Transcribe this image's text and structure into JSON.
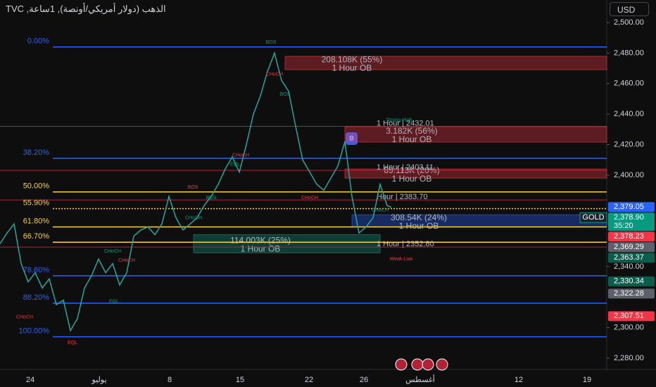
{
  "header": {
    "symbol_title": "الذهب (دولار أمريكي/أونصة), 1ساعة, TVC",
    "currency_button": "USD"
  },
  "chart_data": {
    "type": "line",
    "color": "#26a69a",
    "x": [
      0,
      10,
      20,
      30,
      40,
      50,
      60,
      70,
      80,
      90,
      100,
      110,
      120,
      130,
      140,
      150,
      160,
      170,
      180,
      190,
      200,
      210,
      220,
      230,
      240,
      250,
      260,
      270,
      280,
      290,
      300,
      310,
      320,
      330,
      340,
      350,
      360,
      370,
      380,
      390,
      400,
      410,
      420,
      430,
      440,
      450,
      460,
      470,
      480,
      490,
      500,
      510,
      520,
      530,
      540,
      550,
      556
    ],
    "values": [
      2355,
      2362,
      2368,
      2342,
      2330,
      2336,
      2326,
      2332,
      2315,
      2318,
      2298,
      2306,
      2326,
      2334,
      2345,
      2336,
      2342,
      2328,
      2336,
      2360,
      2364,
      2366,
      2361,
      2368,
      2386,
      2372,
      2364,
      2368,
      2372,
      2380,
      2386,
      2394,
      2404,
      2412,
      2402,
      2420,
      2440,
      2452,
      2468,
      2480,
      2462,
      2455,
      2432,
      2410,
      2402,
      2394,
      2390,
      2398,
      2406,
      2422,
      2386,
      2362,
      2366,
      2372,
      2394,
      2380,
      2378.9
    ],
    "xlim": [
      0,
      862
    ],
    "ylim": [
      2272.6,
      2514.8
    ],
    "yticks": [
      {
        "value": 2500,
        "label": "2,500.00"
      },
      {
        "value": 2480,
        "label": "2,480.00"
      },
      {
        "value": 2460,
        "label": "2,460.00"
      },
      {
        "value": 2440,
        "label": "2,440.00"
      },
      {
        "value": 2420,
        "label": "2,420.00"
      },
      {
        "value": 2400,
        "label": "2,400.00"
      },
      {
        "value": 2340,
        "label": "2,340.00"
      },
      {
        "value": 2300,
        "label": "2,300.00"
      },
      {
        "value": 2280,
        "label": "2,280.00"
      }
    ],
    "categories": [
      "24",
      "يوليو",
      "8",
      "15",
      "22",
      "26",
      "أغسطس",
      "12",
      "19"
    ],
    "fib_levels": [
      {
        "label": "0.00%",
        "value": 2484,
        "color": "#2962ff"
      },
      {
        "label": "38.20%",
        "value": 2411,
        "color": "#2962ff"
      },
      {
        "label": "50.00%",
        "value": 2389,
        "color": "#f7d23a"
      },
      {
        "label": "55.90%",
        "value": 2378,
        "color": "#f7d23a"
      },
      {
        "label": "61.80%",
        "value": 2366,
        "color": "#f7d23a"
      },
      {
        "label": "66.70%",
        "value": 2356,
        "color": "#f7d23a"
      },
      {
        "label": "78.60%",
        "value": 2334,
        "color": "#2962ff"
      },
      {
        "label": "88.20%",
        "value": 2316,
        "color": "#2962ff"
      },
      {
        "label": "100.00%",
        "value": 2294,
        "color": "#2962ff"
      }
    ],
    "levels": [
      {
        "label": "1 Hour | 2432.01",
        "value": 2432.01
      },
      {
        "label": "1 Hour | 2403.11",
        "value": 2403.11
      },
      {
        "label": "Hour | 2383.70",
        "value": 2383.7
      },
      {
        "label": "1 Hour | 2352.80",
        "value": 2352.8
      }
    ],
    "order_blocks": [
      {
        "label": "208.108K (55%)",
        "sublabel": "1 Hour OB",
        "x": [
          405,
          862
        ],
        "range": [
          2469.1,
          2477.9
        ],
        "color": "#f23645"
      },
      {
        "label": "3.182K (56%)",
        "sublabel": "1 Hour OB",
        "x": [
          490,
          862
        ],
        "range": [
          2421.6,
          2431.7
        ],
        "color": "#f23645"
      },
      {
        "label": "89.113K (20%)",
        "sublabel": "1 Hour OB",
        "x": [
          490,
          862
        ],
        "range": [
          2398,
          2404
        ],
        "color": "#f23645"
      },
      {
        "label": "308.54K (24%)",
        "sublabel": "1 Hour OB",
        "x": [
          500,
          862
        ],
        "range": [
          2366,
          2374
        ],
        "color": "#2962ff"
      },
      {
        "label": "114.003K (25%)",
        "sublabel": "1 Hour OB",
        "x": [
          275,
          540
        ],
        "range": [
          2349,
          2361
        ],
        "color": "#089981"
      }
    ],
    "structure_labels": [
      {
        "text": "BOS",
        "x": 385,
        "value": 2487
      },
      {
        "text": "BOS",
        "x": 274,
        "value": 2392
      },
      {
        "text": "BOS",
        "x": 300,
        "value": 2385
      },
      {
        "text": "CHoCH",
        "x": 390,
        "value": 2466
      },
      {
        "text": "BOS",
        "x": 405,
        "value": 2453
      },
      {
        "text": "CHoCH",
        "x": 342,
        "value": 2413
      },
      {
        "text": "EQL",
        "x": 334,
        "value": 2407
      },
      {
        "text": "CHoCH",
        "x": 440,
        "value": 2385
      },
      {
        "text": "CHoCH",
        "x": 160,
        "value": 2350
      },
      {
        "text": "CHoCH",
        "x": 180,
        "value": 2344
      },
      {
        "text": "CHoCH",
        "x": 275,
        "value": 2372
      },
      {
        "text": "CHoCH",
        "x": 35,
        "value": 2307
      },
      {
        "text": "EQL",
        "x": 162,
        "value": 2317
      },
      {
        "text": "EQL",
        "x": 103,
        "value": 2290
      },
      {
        "text": "Strong High",
        "x": 567,
        "value": 2436
      },
      {
        "text": "Weak Low",
        "x": 570,
        "value": 2345
      },
      {
        "text": "CHoCH",
        "x": 540,
        "value": 2377
      }
    ],
    "price_tags": [
      {
        "label": "2,379.05",
        "value": 2379.05,
        "color": "#2962ff"
      },
      {
        "label": "2,378.90",
        "value": 2378.9,
        "color": "#089981",
        "sublabel": "35:20",
        "symbol": "GOLD"
      },
      {
        "label": "2,378.23",
        "value": 2378.23,
        "color": "#f23645"
      },
      {
        "label": "2,369.29",
        "value": 2369.29,
        "color": "#5d606b"
      },
      {
        "label": "2,363.37",
        "value": 2363.37,
        "color": "#0b5e4b"
      },
      {
        "label": "2,330.34",
        "value": 2330.34,
        "color": "#0b5e4b"
      },
      {
        "label": "2,322.28",
        "value": 2322.28,
        "color": "#5d606b"
      },
      {
        "label": "2,307.51",
        "value": 2307.51,
        "color": "#f23645"
      }
    ]
  }
}
